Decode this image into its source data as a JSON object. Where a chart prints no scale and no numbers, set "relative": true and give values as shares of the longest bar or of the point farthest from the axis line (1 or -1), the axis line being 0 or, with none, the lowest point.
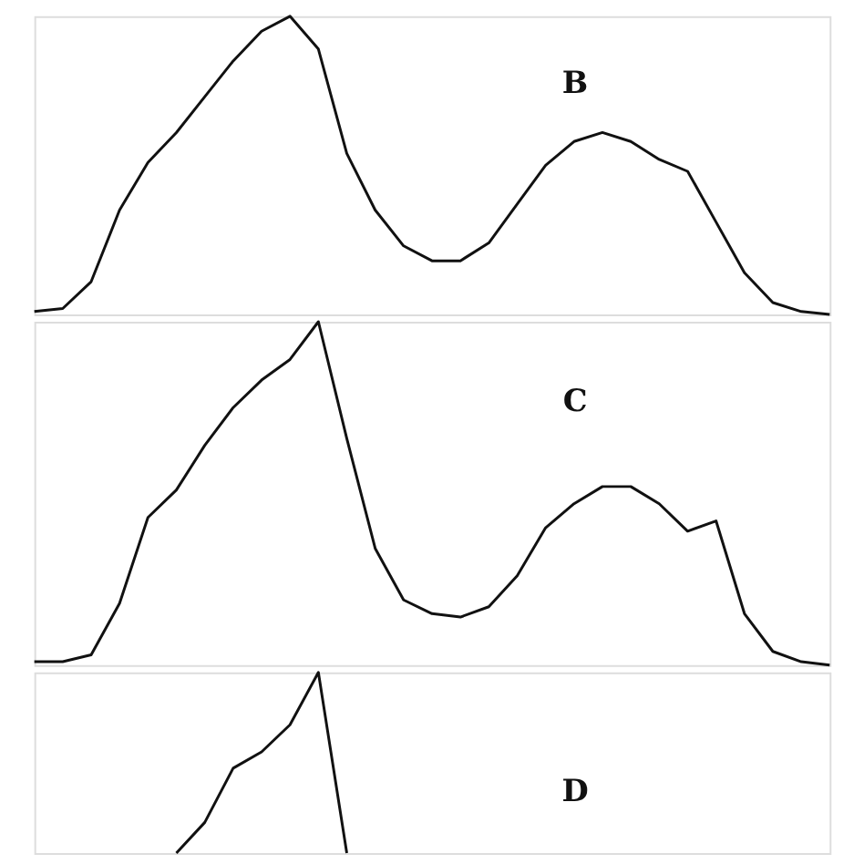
{
  "chart_data": [
    {
      "type": "line",
      "relative": true,
      "annotations": [
        "B"
      ],
      "categories": [
        null,
        null,
        null,
        null,
        null,
        null,
        null,
        null,
        null,
        null,
        null,
        null,
        null,
        null,
        null,
        null,
        null,
        null,
        null,
        null,
        null,
        null,
        null,
        null,
        null,
        null,
        null,
        null,
        null
      ],
      "series": [
        {
          "color": "#111111",
          "values": [
            0.01,
            0.02,
            0.11,
            0.35,
            0.51,
            0.61,
            0.73,
            0.85,
            0.95,
            1,
            0.89,
            0.54,
            0.35,
            0.23,
            0.18,
            0.18,
            0.24,
            0.37,
            0.5,
            0.58,
            0.61,
            0.58,
            0.52,
            0.48,
            0.31,
            0.14,
            0.04,
            0.01,
            0
          ]
        }
      ]
    },
    {
      "type": "line",
      "relative": true,
      "annotations": [
        "C"
      ],
      "categories": [
        null,
        null,
        null,
        null,
        null,
        null,
        null,
        null,
        null,
        null,
        null,
        null,
        null,
        null,
        null,
        null,
        null,
        null,
        null,
        null,
        null,
        null,
        null,
        null,
        null,
        null,
        null,
        null,
        null
      ],
      "series": [
        {
          "color": "#111111",
          "values": [
            0.01,
            0.01,
            0.03,
            0.18,
            0.43,
            0.51,
            0.64,
            0.75,
            0.83,
            0.89,
            1,
            0.66,
            0.34,
            0.19,
            0.15,
            0.14,
            0.17,
            0.26,
            0.4,
            0.47,
            0.52,
            0.52,
            0.47,
            0.39,
            0.42,
            0.15,
            0.04,
            0.01,
            0
          ]
        }
      ]
    },
    {
      "type": "line",
      "relative": true,
      "annotations": [
        "D"
      ],
      "categories": [
        null,
        null,
        null,
        null,
        null,
        null,
        null,
        null,
        null,
        null,
        null,
        null,
        null,
        null,
        null,
        null,
        null,
        null,
        null,
        null,
        null,
        null,
        null,
        null,
        null,
        null,
        null,
        null,
        null
      ],
      "series": [
        {
          "color": "#111111",
          "values": [
            null,
            null,
            null,
            null,
            null,
            0,
            0.17,
            0.47,
            0.56,
            0.71,
            1,
            0,
            null,
            null,
            null,
            null,
            null,
            null,
            null,
            null,
            null,
            null,
            null,
            null,
            null,
            null,
            null,
            null,
            null
          ]
        }
      ]
    }
  ]
}
